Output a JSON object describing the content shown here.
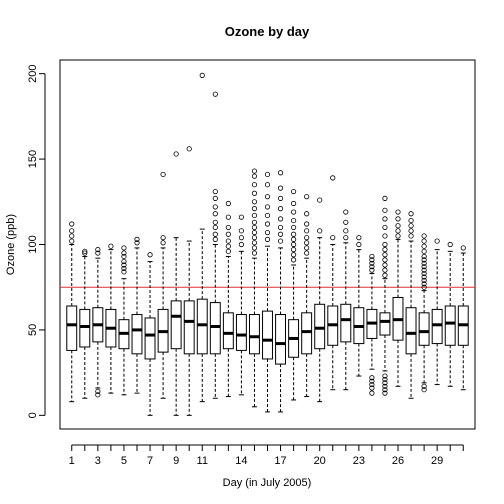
{
  "chart_data": {
    "type": "boxplot",
    "title": "Ozone by day",
    "xlabel": "Day (in July 2005)",
    "ylabel": "Ozone (ppb)",
    "ylim": [
      -8,
      208
    ],
    "yticks": [
      0,
      50,
      100,
      150,
      200
    ],
    "x_tick_labels": [
      "1",
      "3",
      "5",
      "7",
      "9",
      "11",
      "14",
      "17",
      "20",
      "23",
      "26",
      "29"
    ],
    "x_tick_positions": [
      1,
      3,
      5,
      7,
      9,
      11,
      14,
      17,
      20,
      23,
      26,
      29
    ],
    "reference_line": {
      "y": 75,
      "color": "#e03030"
    },
    "days": [
      1,
      2,
      3,
      4,
      5,
      6,
      7,
      8,
      9,
      10,
      11,
      12,
      13,
      14,
      15,
      16,
      17,
      18,
      19,
      20,
      21,
      22,
      23,
      24,
      25,
      26,
      27,
      28,
      29,
      30,
      31
    ],
    "boxes": [
      {
        "day": 1,
        "min": 8,
        "q1": 38,
        "median": 53,
        "q3": 64,
        "max": 100,
        "outliers": [
          102,
          105,
          108,
          112
        ]
      },
      {
        "day": 2,
        "min": 10,
        "q1": 40,
        "median": 52,
        "q3": 62,
        "max": 93,
        "outliers": [
          95,
          96
        ]
      },
      {
        "day": 3,
        "min": 16,
        "q1": 43,
        "median": 53,
        "q3": 63,
        "max": 92,
        "outliers": [
          12,
          14,
          95,
          97
        ]
      },
      {
        "day": 4,
        "min": 13,
        "q1": 40,
        "median": 51,
        "q3": 62,
        "max": 97,
        "outliers": [
          99
        ]
      },
      {
        "day": 5,
        "min": 12,
        "q1": 39,
        "median": 48,
        "q3": 56,
        "max": 80,
        "outliers": [
          84,
          86,
          88,
          90,
          93,
          95,
          98
        ]
      },
      {
        "day": 6,
        "min": 13,
        "q1": 36,
        "median": 50,
        "q3": 59,
        "max": 98,
        "outliers": [
          101,
          103
        ]
      },
      {
        "day": 7,
        "min": 0,
        "q1": 33,
        "median": 47,
        "q3": 57,
        "max": 90,
        "outliers": [
          94
        ]
      },
      {
        "day": 8,
        "min": 10,
        "q1": 37,
        "median": 49,
        "q3": 62,
        "max": 98,
        "outliers": [
          101,
          104,
          141
        ]
      },
      {
        "day": 9,
        "min": 0,
        "q1": 39,
        "median": 58,
        "q3": 67,
        "max": 104,
        "outliers": [
          153
        ]
      },
      {
        "day": 10,
        "min": 0,
        "q1": 36,
        "median": 55,
        "q3": 67,
        "max": 102,
        "outliers": [
          156
        ]
      },
      {
        "day": 11,
        "min": 8,
        "q1": 36,
        "median": 53,
        "q3": 68,
        "max": 109,
        "outliers": [
          199
        ]
      },
      {
        "day": 12,
        "min": 10,
        "q1": 36,
        "median": 52,
        "q3": 66,
        "max": 100,
        "outliers": [
          103,
          106,
          110,
          113,
          118,
          122,
          127,
          131,
          188
        ]
      },
      {
        "day": 13,
        "min": 11,
        "q1": 39,
        "median": 48,
        "q3": 60,
        "max": 93,
        "outliers": [
          96,
          99,
          102,
          106,
          110,
          116,
          124
        ]
      },
      {
        "day": 14,
        "min": 12,
        "q1": 38,
        "median": 47,
        "q3": 59,
        "max": 96,
        "outliers": [
          100,
          104,
          108,
          116
        ]
      },
      {
        "day": 15,
        "min": 5,
        "q1": 36,
        "median": 46,
        "q3": 59,
        "max": 92,
        "outliers": [
          95,
          98,
          101,
          104,
          107,
          110,
          113,
          117,
          121,
          125,
          130,
          135,
          140,
          143
        ]
      },
      {
        "day": 16,
        "min": 2,
        "q1": 33,
        "median": 44,
        "q3": 61,
        "max": 99,
        "outliers": [
          103,
          107,
          112,
          117,
          122,
          128,
          135,
          141
        ]
      },
      {
        "day": 17,
        "min": 2,
        "q1": 30,
        "median": 42,
        "q3": 59,
        "max": 98,
        "outliers": [
          102,
          106,
          110,
          115,
          121,
          127,
          133,
          142
        ]
      },
      {
        "day": 18,
        "min": 9,
        "q1": 34,
        "median": 45,
        "q3": 56,
        "max": 88,
        "outliers": [
          91,
          94,
          97,
          100,
          103,
          106,
          110,
          114,
          119,
          124,
          131
        ]
      },
      {
        "day": 19,
        "min": 11,
        "q1": 36,
        "median": 49,
        "q3": 60,
        "max": 92,
        "outliers": [
          95,
          98,
          101,
          104,
          108,
          112,
          118,
          128
        ]
      },
      {
        "day": 20,
        "min": 8,
        "q1": 39,
        "median": 51,
        "q3": 65,
        "max": 104,
        "outliers": [
          108,
          126
        ]
      },
      {
        "day": 21,
        "min": 15,
        "q1": 41,
        "median": 53,
        "q3": 64,
        "max": 100,
        "outliers": [
          104,
          139
        ]
      },
      {
        "day": 22,
        "min": 15,
        "q1": 43,
        "median": 56,
        "q3": 65,
        "max": 101,
        "outliers": [
          104,
          108,
          113,
          119
        ]
      },
      {
        "day": 23,
        "min": 23,
        "q1": 42,
        "median": 52,
        "q3": 63,
        "max": 97,
        "outliers": [
          100,
          104
        ]
      },
      {
        "day": 24,
        "min": 27,
        "q1": 45,
        "median": 54,
        "q3": 62,
        "max": 83,
        "outliers": [
          13,
          16,
          18,
          20,
          22,
          85,
          87,
          89,
          91,
          93
        ]
      },
      {
        "day": 25,
        "min": 26,
        "q1": 47,
        "median": 55,
        "q3": 60,
        "max": 80,
        "outliers": [
          13,
          15,
          17,
          19,
          21,
          23,
          82,
          85,
          88,
          91,
          94,
          97,
          100,
          105,
          110,
          115,
          120,
          127
        ]
      },
      {
        "day": 26,
        "min": 17,
        "q1": 44,
        "median": 56,
        "q3": 69,
        "max": 103,
        "outliers": [
          105,
          108,
          111,
          115,
          119
        ]
      },
      {
        "day": 27,
        "min": 10,
        "q1": 36,
        "median": 48,
        "q3": 63,
        "max": 102,
        "outliers": [
          105,
          108,
          111,
          114,
          118
        ]
      },
      {
        "day": 28,
        "min": 19,
        "q1": 41,
        "median": 49,
        "q3": 60,
        "max": 73,
        "outliers": [
          15,
          17,
          75,
          77,
          79,
          81,
          83,
          85,
          87,
          89,
          91,
          93,
          96,
          99,
          102,
          105
        ]
      },
      {
        "day": 29,
        "min": 18,
        "q1": 42,
        "median": 53,
        "q3": 62,
        "max": 97,
        "outliers": [
          102
        ]
      },
      {
        "day": 30,
        "min": 17,
        "q1": 41,
        "median": 54,
        "q3": 64,
        "max": 96,
        "outliers": [
          100
        ]
      },
      {
        "day": 31,
        "min": 15,
        "q1": 41,
        "median": 53,
        "q3": 64,
        "max": 95,
        "outliers": [
          98
        ]
      }
    ]
  }
}
